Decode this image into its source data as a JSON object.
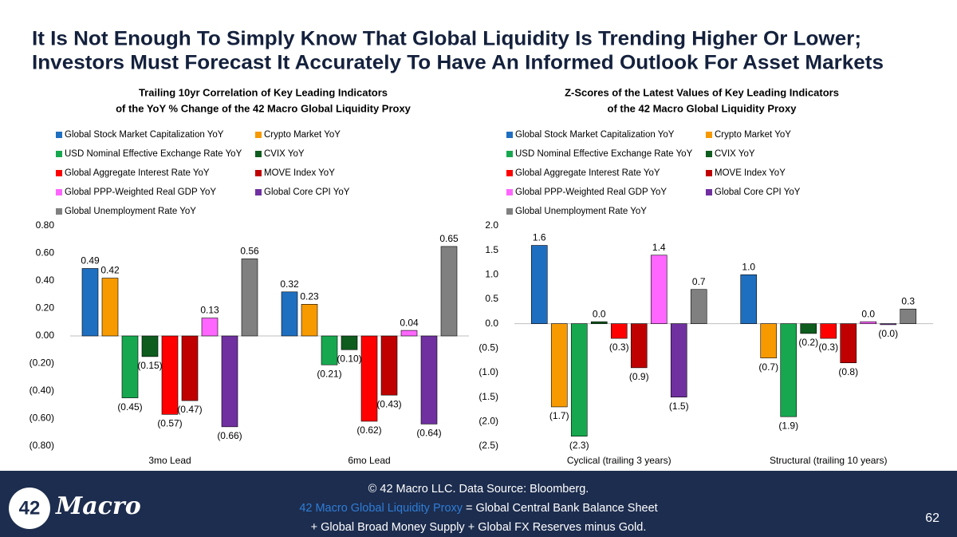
{
  "title": [
    "It Is Not Enough To Simply Know That Global Liquidity Is Trending Higher Or Lower;",
    "Investors Must Forecast It Accurately To Have An Informed Outlook For Asset Markets"
  ],
  "chart_data": [
    {
      "type": "bar",
      "title": [
        "Trailing 10yr Correlation of Key Leading Indicators",
        "of the YoY % Change of the 42 Macro Global Liquidity Proxy"
      ],
      "categories": [
        "3mo Lead",
        "6mo Lead"
      ],
      "ylim": [
        -0.8,
        0.8
      ],
      "yticks": [
        {
          "value": 0.8,
          "label": "0.80"
        },
        {
          "value": 0.6,
          "label": "0.60"
        },
        {
          "value": 0.4,
          "label": "0.40"
        },
        {
          "value": 0.2,
          "label": "0.20"
        },
        {
          "value": 0,
          "label": "0.00"
        },
        {
          "value": -0.2,
          "label": "(0.20)"
        },
        {
          "value": -0.4,
          "label": "(0.40)"
        },
        {
          "value": -0.6,
          "label": "(0.60)"
        },
        {
          "value": -0.8,
          "label": "(0.80)"
        }
      ],
      "series": [
        {
          "name": "Global Stock Market Capitalization YoY",
          "color": "#1f6fc0",
          "values": [
            0.49,
            0.32
          ],
          "value_labels": [
            "0.49",
            "0.32"
          ]
        },
        {
          "name": "Crypto Market YoY",
          "color": "#f79a00",
          "values": [
            0.42,
            0.23
          ],
          "value_labels": [
            "0.42",
            "0.23"
          ]
        },
        {
          "name": "USD Nominal Effective Exchange Rate YoY",
          "color": "#17a84f",
          "values": [
            -0.45,
            -0.21
          ],
          "value_labels": [
            "(0.45)",
            "(0.21)"
          ]
        },
        {
          "name": "CVIX YoY",
          "color": "#0e5c1e",
          "values": [
            -0.15,
            -0.1
          ],
          "value_labels": [
            "(0.15)",
            "(0.10)"
          ]
        },
        {
          "name": "Global Aggregate Interest Rate YoY",
          "color": "#ff0000",
          "values": [
            -0.57,
            -0.62
          ],
          "value_labels": [
            "(0.57)",
            "(0.62)"
          ]
        },
        {
          "name": "MOVE Index YoY",
          "color": "#c00000",
          "values": [
            -0.47,
            -0.43
          ],
          "value_labels": [
            "(0.47)",
            "(0.43)"
          ]
        },
        {
          "name": "Global  PPP-Weighted Real GDP YoY",
          "color": "#ff66ff",
          "values": [
            0.13,
            0.04
          ],
          "value_labels": [
            "0.13",
            "0.04"
          ]
        },
        {
          "name": "Global Core CPI YoY",
          "color": "#7030a0",
          "values": [
            -0.66,
            -0.64
          ],
          "value_labels": [
            "(0.66)",
            "(0.64)"
          ]
        },
        {
          "name": "Global Unemployment Rate YoY",
          "color": "#808080",
          "values": [
            0.56,
            0.65
          ],
          "value_labels": [
            "0.56",
            "0.65"
          ]
        }
      ]
    },
    {
      "type": "bar",
      "title": [
        "Z-Scores of the Latest Values of Key Leading Indicators",
        "of the 42 Macro Global Liquidity Proxy"
      ],
      "categories": [
        "Cyclical (trailing 3 years)",
        "Structural (trailing 10 years)"
      ],
      "ylim": [
        -2.5,
        2.0
      ],
      "yticks": [
        {
          "value": 2,
          "label": "2.0"
        },
        1.5,
        {
          "value": 1,
          "label": "1.0"
        },
        0.5,
        {
          "value": 0,
          "label": "0.0"
        },
        {
          "value": -0.5,
          "label": "(0.5)"
        },
        {
          "value": -1,
          "label": "(1.0)"
        },
        {
          "value": -1.5,
          "label": "(1.5)"
        },
        {
          "value": -2,
          "label": "(2.0)"
        },
        {
          "value": -2.5,
          "label": "(2.5)"
        }
      ],
      "series": [
        {
          "name": "Global Stock Market Capitalization YoY",
          "color": "#1f6fc0",
          "values": [
            1.6,
            1.0
          ],
          "value_labels": [
            "1.6",
            "1.0"
          ]
        },
        {
          "name": "Crypto Market YoY",
          "color": "#f79a00",
          "values": [
            -1.7,
            -0.7
          ],
          "value_labels": [
            "(1.7)",
            "(0.7)"
          ]
        },
        {
          "name": "USD Nominal Effective Exchange Rate YoY",
          "color": "#17a84f",
          "values": [
            -2.3,
            -1.9
          ],
          "value_labels": [
            "(2.3)",
            "(1.9)"
          ]
        },
        {
          "name": "CVIX YoY",
          "color": "#0e5c1e",
          "values": [
            0.04,
            -0.2
          ],
          "value_labels": [
            "0.0",
            "(0.2)"
          ]
        },
        {
          "name": "Global Aggregate Interest Rate YoY",
          "color": "#ff0000",
          "values": [
            -0.3,
            -0.3
          ],
          "value_labels": [
            "(0.3)",
            "(0.3)"
          ]
        },
        {
          "name": "MOVE Index YoY",
          "color": "#c00000",
          "values": [
            -0.9,
            -0.8
          ],
          "value_labels": [
            "(0.9)",
            "(0.8)"
          ]
        },
        {
          "name": "Global  PPP-Weighted Real GDP YoY",
          "color": "#ff66ff",
          "values": [
            1.4,
            0.04
          ],
          "value_labels": [
            "1.4",
            "0.0"
          ]
        },
        {
          "name": "Global Core CPI YoY",
          "color": "#7030a0",
          "values": [
            -1.5,
            -0.02
          ],
          "value_labels": [
            "(1.5)",
            "(0.0)"
          ]
        },
        {
          "name": "Global Unemployment Rate YoY",
          "color": "#808080",
          "values": [
            0.7,
            0.3
          ],
          "value_labels": [
            "0.7",
            "0.3"
          ]
        }
      ]
    }
  ],
  "footer": {
    "line1": "© 42 Macro LLC. Data Source: Bloomberg.",
    "line2_link": "42 Macro Global Liquidity Proxy",
    "line2_rest": " = Global Central Bank Balance Sheet",
    "line3": "+ Global Broad Money Supply + Global FX Reserves minus Gold."
  },
  "logo": {
    "number": "42",
    "word": "Macro"
  },
  "page_number": "62"
}
